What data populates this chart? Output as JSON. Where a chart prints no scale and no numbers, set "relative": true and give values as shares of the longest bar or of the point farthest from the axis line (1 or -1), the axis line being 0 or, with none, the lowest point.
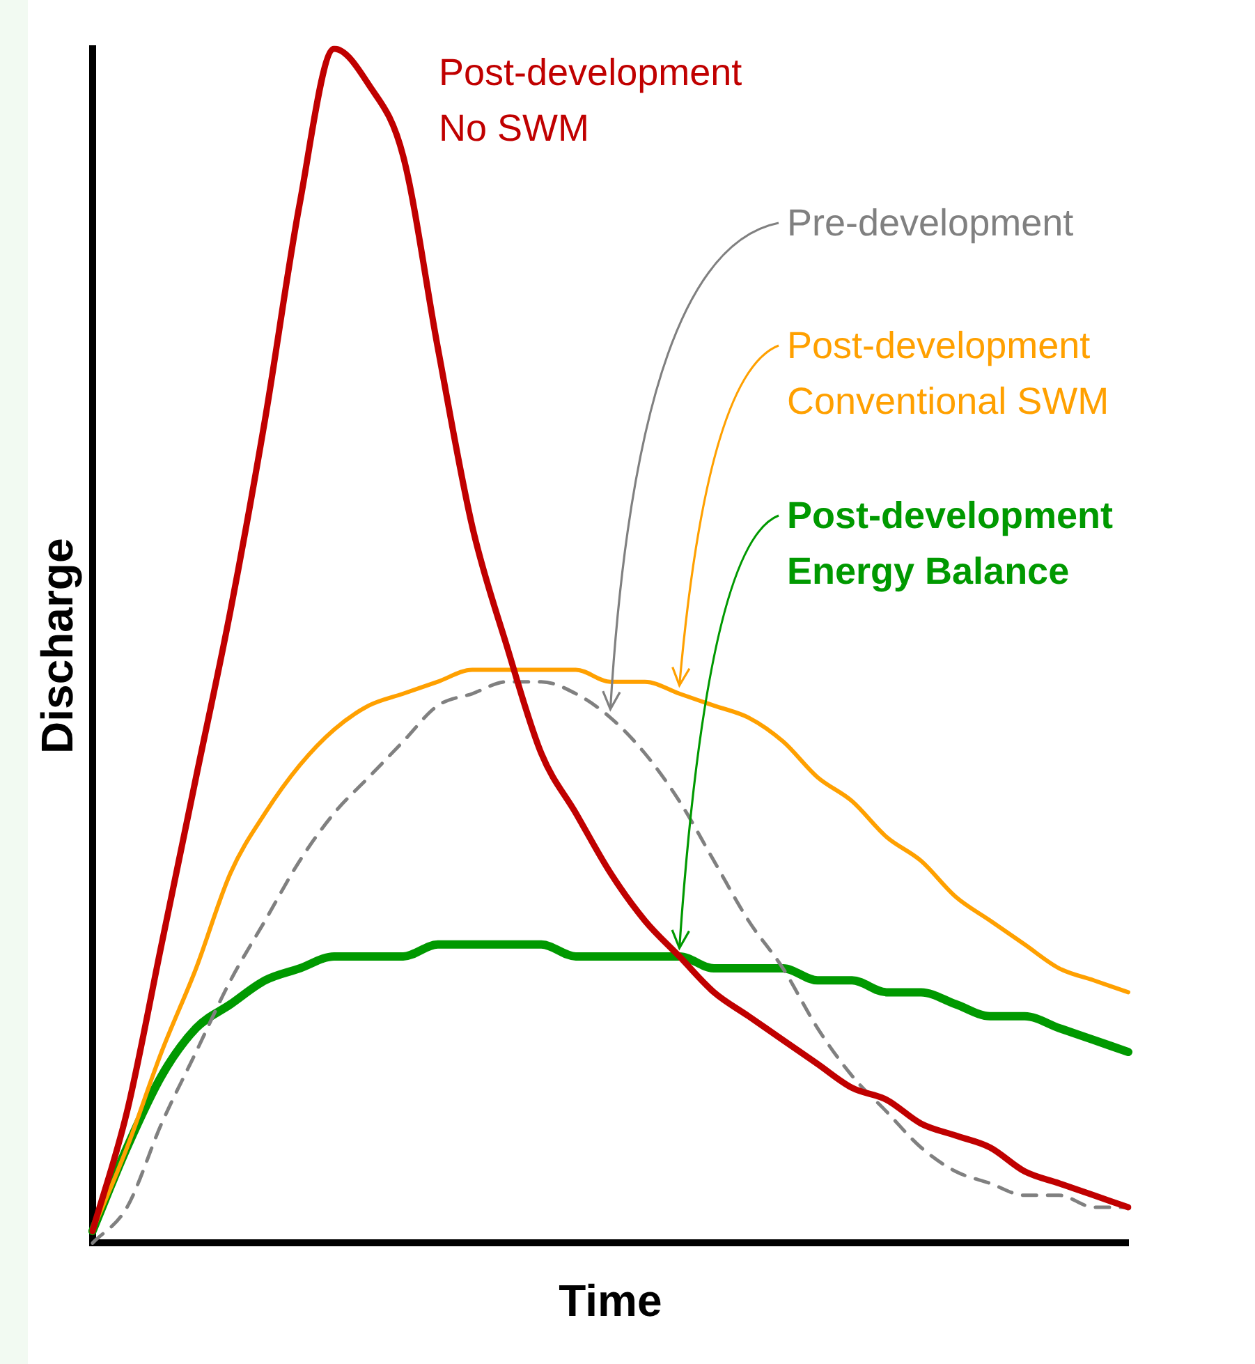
{
  "chart_data": {
    "type": "line",
    "relative": true,
    "xlabel": "Time",
    "ylabel": "Discharge",
    "legend": false,
    "categories": [
      null,
      null,
      null,
      null,
      null,
      null,
      null,
      null,
      null,
      null,
      null,
      null,
      null,
      null,
      null,
      null,
      null,
      null,
      null,
      null,
      null,
      null,
      null,
      null,
      null,
      null,
      null,
      null,
      null,
      null,
      null
    ],
    "series": [
      {
        "name": "Post-development No SWM",
        "color": "#c00000",
        "values": [
          0.01,
          0.11,
          0.25,
          0.39,
          0.53,
          0.69,
          0.87,
          1.0,
          0.97,
          0.91,
          0.75,
          0.6,
          0.5,
          0.41,
          0.36,
          0.31,
          0.27,
          0.24,
          0.21,
          0.19,
          0.17,
          0.15,
          0.13,
          0.12,
          0.1,
          0.09,
          0.08,
          0.06,
          0.05,
          0.04,
          0.03
        ]
      },
      {
        "name": "Pre-development",
        "color": "#808080",
        "line_style": "dashed",
        "values": [
          0.0,
          0.03,
          0.1,
          0.16,
          0.22,
          0.27,
          0.32,
          0.36,
          0.39,
          0.42,
          0.45,
          0.46,
          0.47,
          0.47,
          0.46,
          0.44,
          0.41,
          0.37,
          0.32,
          0.27,
          0.23,
          0.18,
          0.14,
          0.11,
          0.08,
          0.06,
          0.05,
          0.04,
          0.04,
          0.03,
          0.03
        ]
      },
      {
        "name": "Post-development Conventional SWM",
        "color": "#ffa000",
        "values": [
          0.01,
          0.08,
          0.16,
          0.23,
          0.31,
          0.36,
          0.4,
          0.43,
          0.45,
          0.46,
          0.47,
          0.48,
          0.48,
          0.48,
          0.48,
          0.47,
          0.47,
          0.46,
          0.45,
          0.44,
          0.42,
          0.39,
          0.37,
          0.34,
          0.32,
          0.29,
          0.27,
          0.25,
          0.23,
          0.22,
          0.21
        ]
      },
      {
        "name": "Post-development Energy Balance",
        "color": "#009900",
        "values": [
          0.01,
          0.08,
          0.14,
          0.18,
          0.2,
          0.22,
          0.23,
          0.24,
          0.24,
          0.24,
          0.25,
          0.25,
          0.25,
          0.25,
          0.24,
          0.24,
          0.24,
          0.24,
          0.23,
          0.23,
          0.23,
          0.22,
          0.22,
          0.21,
          0.21,
          0.2,
          0.19,
          0.19,
          0.18,
          0.17,
          0.16
        ]
      }
    ]
  }
}
